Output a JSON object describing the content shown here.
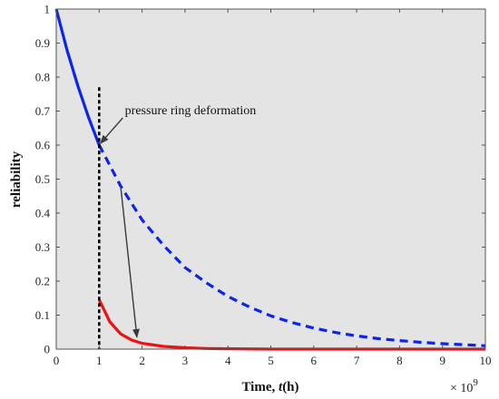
{
  "chart_data": {
    "type": "line",
    "xlabel_prefix": "Time, ",
    "xlabel_var": "t",
    "xlabel_suffix": "(h)",
    "ylabel": "reliability",
    "xlim": [
      0,
      10
    ],
    "ylim": [
      0,
      1
    ],
    "x_multiplier": "× 10",
    "x_multiplier_exp": "9",
    "grid": false,
    "background": "#e4e4e4",
    "x_ticks": [
      "0",
      "1",
      "2",
      "3",
      "4",
      "5",
      "6",
      "7",
      "8",
      "9",
      "10"
    ],
    "y_ticks": [
      "0",
      "0.1",
      "0.2",
      "0.3",
      "0.4",
      "0.5",
      "0.6",
      "0.7",
      "0.8",
      "0.9",
      "1"
    ],
    "series": [
      {
        "color": "#0b24ee",
        "style": "solid",
        "x": [
          0,
          0.25,
          0.5,
          0.75,
          1.0
        ],
        "y": [
          1.0,
          0.88,
          0.775,
          0.682,
          0.6
        ]
      },
      {
        "color": "#0b24ee",
        "style": "dashed",
        "x": [
          1.0,
          1.5,
          2.0,
          2.5,
          3.0,
          3.5,
          4.0,
          4.5,
          5.0,
          5.5,
          6.0,
          6.5,
          7.0,
          7.5,
          8.0,
          8.5,
          9.0,
          9.5,
          10.0
        ],
        "y": [
          0.6,
          0.48,
          0.38,
          0.305,
          0.24,
          0.195,
          0.155,
          0.124,
          0.098,
          0.078,
          0.062,
          0.049,
          0.039,
          0.031,
          0.025,
          0.02,
          0.016,
          0.013,
          0.01
        ]
      },
      {
        "color": "#f01010",
        "style": "solid",
        "x": [
          1.0,
          1.25,
          1.5,
          1.75,
          2.0,
          2.5,
          3.0,
          3.5,
          4.0,
          5.0,
          6.0,
          7.0,
          8.0,
          9.0,
          10.0
        ],
        "y": [
          0.145,
          0.08,
          0.045,
          0.027,
          0.017,
          0.008,
          0.004,
          0.002,
          0.001,
          0.0,
          0.0,
          0.0,
          0.0,
          0.0,
          0.0
        ]
      }
    ],
    "vline": {
      "x": 1.0,
      "y_top": 0.77,
      "color": "#000000"
    },
    "annotation": {
      "text": "pressure ring deformation",
      "text_at": [
        1.6,
        0.685
      ],
      "arrow_from": [
        1.55,
        0.68
      ],
      "arrow_to": [
        1.03,
        0.605
      ]
    },
    "arrow2": {
      "from": [
        1.5,
        0.48
      ],
      "to": [
        1.88,
        0.035
      ]
    }
  }
}
